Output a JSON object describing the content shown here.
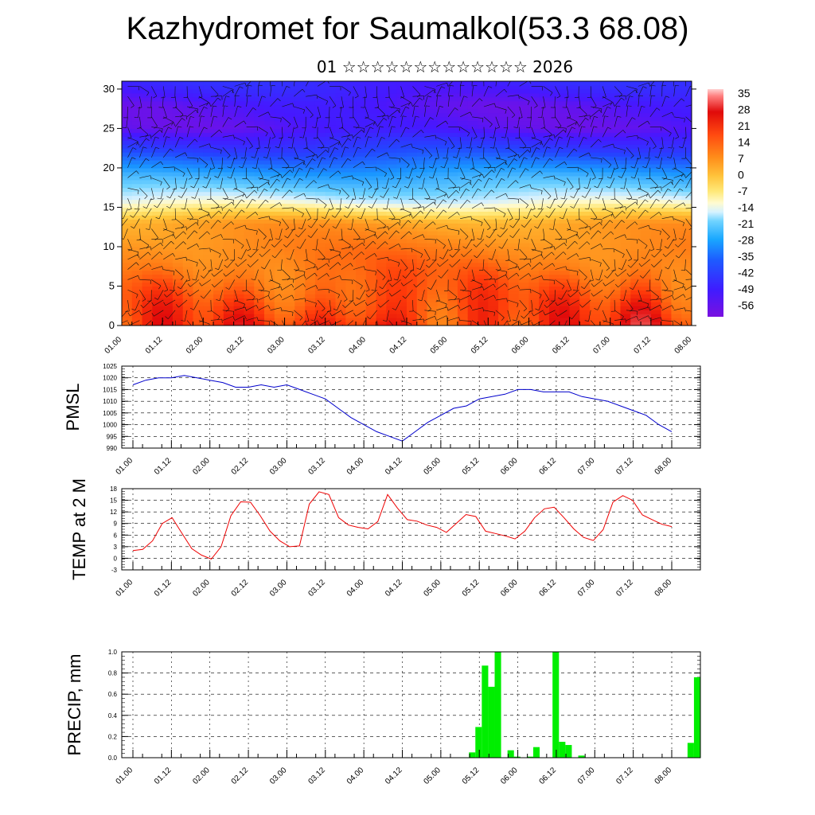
{
  "title": "Kazhydromet for Saumalkol(53.3 68.08)",
  "subtitle": "01 ☆☆☆☆☆☆☆☆☆☆☆☆☆ 2026",
  "time_labels": [
    "01.00",
    "01.12",
    "02.00",
    "02.12",
    "03.00",
    "03.12",
    "04.00",
    "04.12",
    "05.00",
    "05.12",
    "06.00",
    "06.12",
    "07.00",
    "07.12",
    "08.00"
  ],
  "chart_data": [
    {
      "type": "heatmap",
      "name": "cross-section",
      "y_ticks": [
        "0",
        "5",
        "10",
        "15",
        "20",
        "25",
        "30"
      ],
      "ylim": [
        0,
        31
      ],
      "colorbar_labels": [
        "35",
        "28",
        "21",
        "14",
        "7",
        "0",
        "-7",
        "-14",
        "-21",
        "-28",
        "-35",
        "-42",
        "-49",
        "-56"
      ],
      "colorbar_range": [
        -63,
        42
      ],
      "profile_levels": [
        0,
        5,
        10,
        13,
        16,
        19,
        22,
        25,
        28,
        31
      ],
      "profile_temps": [
        18,
        14,
        10,
        6,
        -14,
        -28,
        -45,
        -58,
        -58,
        -52
      ],
      "overlay": "wind barbs"
    },
    {
      "type": "line",
      "ylabel": "PMSL",
      "ylim": [
        990,
        1025
      ],
      "y_ticks": [
        "990",
        "995",
        "1000",
        "1005",
        "1010",
        "1015",
        "1020",
        "1025"
      ],
      "color": "#0000cc",
      "values": [
        1017,
        1019,
        1020,
        1020,
        1021,
        1020,
        1019,
        1018,
        1016,
        1016,
        1017,
        1016,
        1017,
        1015,
        1013,
        1011,
        1007,
        1003,
        1000,
        997,
        995,
        993,
        997,
        1001,
        1004,
        1007,
        1008,
        1011,
        1012,
        1013,
        1015,
        1015,
        1014,
        1014,
        1014,
        1012,
        1011,
        1010,
        1008,
        1006,
        1004,
        1000,
        997
      ]
    },
    {
      "type": "line",
      "ylabel": "TEMP at 2 M",
      "ylim": [
        -3,
        18
      ],
      "y_ticks": [
        "-3",
        "0",
        "3",
        "6",
        "9",
        "12",
        "15",
        "18"
      ],
      "color": "#ee0000",
      "values": [
        2.0,
        2.3,
        4.5,
        9.0,
        10.5,
        6.5,
        2.5,
        0.8,
        -0.2,
        3.0,
        11.0,
        14.6,
        14.5,
        11.0,
        7.0,
        4.5,
        3.0,
        3.2,
        14.0,
        17.2,
        16.5,
        10.5,
        8.6,
        8.0,
        7.6,
        9.5,
        16.5,
        13.0,
        10.0,
        9.6,
        8.6,
        8.0,
        6.7,
        9.0,
        11.3,
        10.8,
        7.0,
        6.4,
        5.8,
        5.0,
        7.0,
        10.5,
        12.8,
        13.2,
        10.5,
        7.6,
        5.4,
        4.6,
        7.4,
        14.5,
        16.2,
        15.0,
        11.2,
        10.0,
        8.8,
        8.2
      ]
    },
    {
      "type": "bar",
      "ylabel": "PRECIP, mm",
      "ylim": [
        0,
        1.0
      ],
      "y_ticks": [
        "0.0",
        "0.2",
        "0.4",
        "0.6",
        "0.8",
        "1.0"
      ],
      "color": "#00ee00",
      "values": [
        0,
        0,
        0,
        0,
        0,
        0,
        0,
        0,
        0,
        0,
        0,
        0,
        0,
        0,
        0,
        0,
        0,
        0,
        0,
        0,
        0,
        0,
        0,
        0,
        0,
        0,
        0,
        0,
        0,
        0,
        0,
        0,
        0,
        0,
        0,
        0,
        0,
        0,
        0,
        0,
        0,
        0,
        0,
        0,
        0,
        0,
        0,
        0,
        0,
        0,
        0,
        0,
        0,
        0,
        0.05,
        0.29,
        0.87,
        0.67,
        1.0,
        0,
        0.07,
        0.01,
        0,
        0.01,
        0.1,
        0,
        0,
        1.0,
        0.15,
        0.12,
        0,
        0.02,
        0,
        0,
        0,
        0,
        0,
        0,
        0,
        0,
        0,
        0,
        0,
        0,
        0,
        0,
        0,
        0,
        0.14,
        0.76
      ]
    }
  ]
}
